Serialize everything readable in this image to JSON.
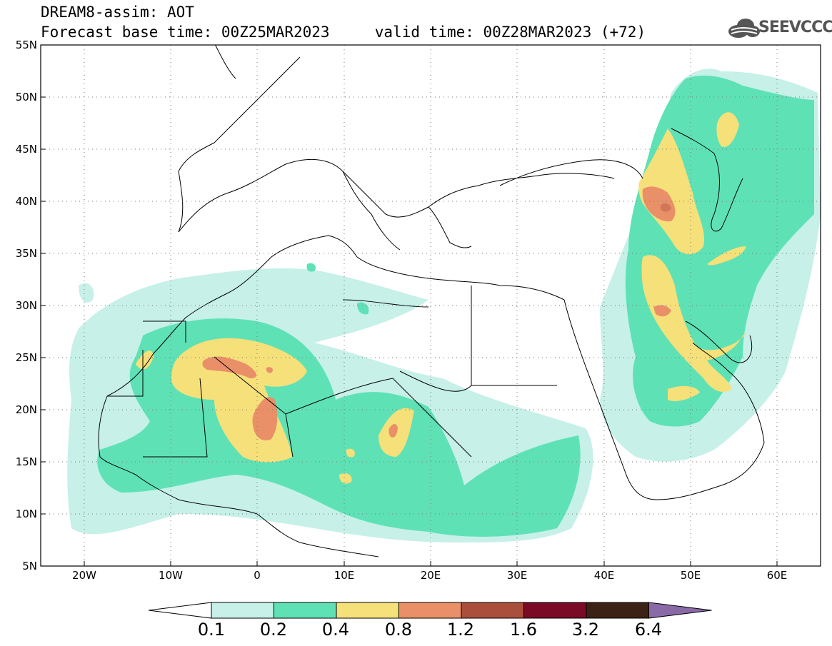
{
  "title": {
    "line1": "DREAM8-assim: AOT",
    "line2": "Forecast base time: 00Z25MAR2023     valid time: 00Z28MAR2023 (+72)"
  },
  "logo": {
    "text": "SEEVCCC",
    "icon": "cloud-icon"
  },
  "map": {
    "lat_labels": [
      "55N",
      "50N",
      "45N",
      "40N",
      "35N",
      "30N",
      "25N",
      "20N",
      "15N",
      "10N",
      "5N"
    ],
    "lon_labels": [
      "20W",
      "10W",
      "0",
      "10E",
      "20E",
      "30E",
      "40E",
      "50E",
      "60E"
    ],
    "lat_range": [
      5,
      55
    ],
    "lon_range": [
      -25,
      65
    ],
    "grid": "dotted",
    "quantity": "Aerosol optical thickness"
  },
  "colorbar": {
    "labels": [
      "0.1",
      "0.2",
      "0.4",
      "0.8",
      "1.2",
      "1.6",
      "3.2",
      "6.4"
    ],
    "colors": [
      "#ffffff",
      "#c6f0e8",
      "#5fe1b6",
      "#f6e07a",
      "#e99068",
      "#a94f3c",
      "#7a0a25",
      "#3c2214",
      "#8a6aa6"
    ]
  }
}
